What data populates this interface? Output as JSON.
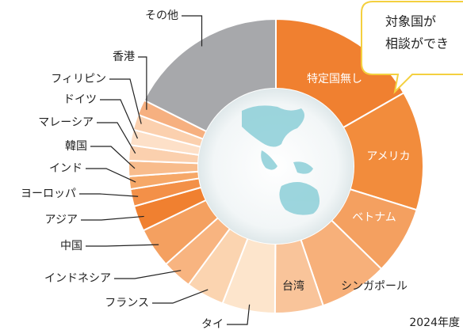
{
  "chart_data": {
    "type": "pie",
    "donut": true,
    "categories": [
      "特定国無し",
      "アメリカ",
      "ベトナム",
      "シンガポール",
      "台湾",
      "タイ",
      "フランス",
      "インドネシア",
      "中国",
      "アジア",
      "ヨーロッパ",
      "インド",
      "韓国",
      "マレーシア",
      "ドイツ",
      "フィリピン",
      "香港",
      "その他"
    ],
    "values": [
      16.7,
      13.1,
      7.5,
      7.5,
      5.3,
      5.8,
      4.2,
      3.3,
      4.4,
      2.8,
      1.9,
      1.4,
      1.7,
      1.7,
      1.7,
      1.7,
      1.7,
      17.6
    ],
    "colors": [
      "#f08030",
      "#f28c3c",
      "#f4a060",
      "#f7b07a",
      "#f9c49a",
      "#fde5cc",
      "#fbd4b0",
      "#f8b480",
      "#f4a060",
      "#f08030",
      "#f39048",
      "#f6a868",
      "#f8bc8c",
      "#fbd0ae",
      "#fde0c8",
      "#fbd0ae",
      "#f6b080",
      "#a7a8ab"
    ],
    "annotation": [
      "対象国が",
      "相談ができ"
    ],
    "note": "2024年度"
  }
}
